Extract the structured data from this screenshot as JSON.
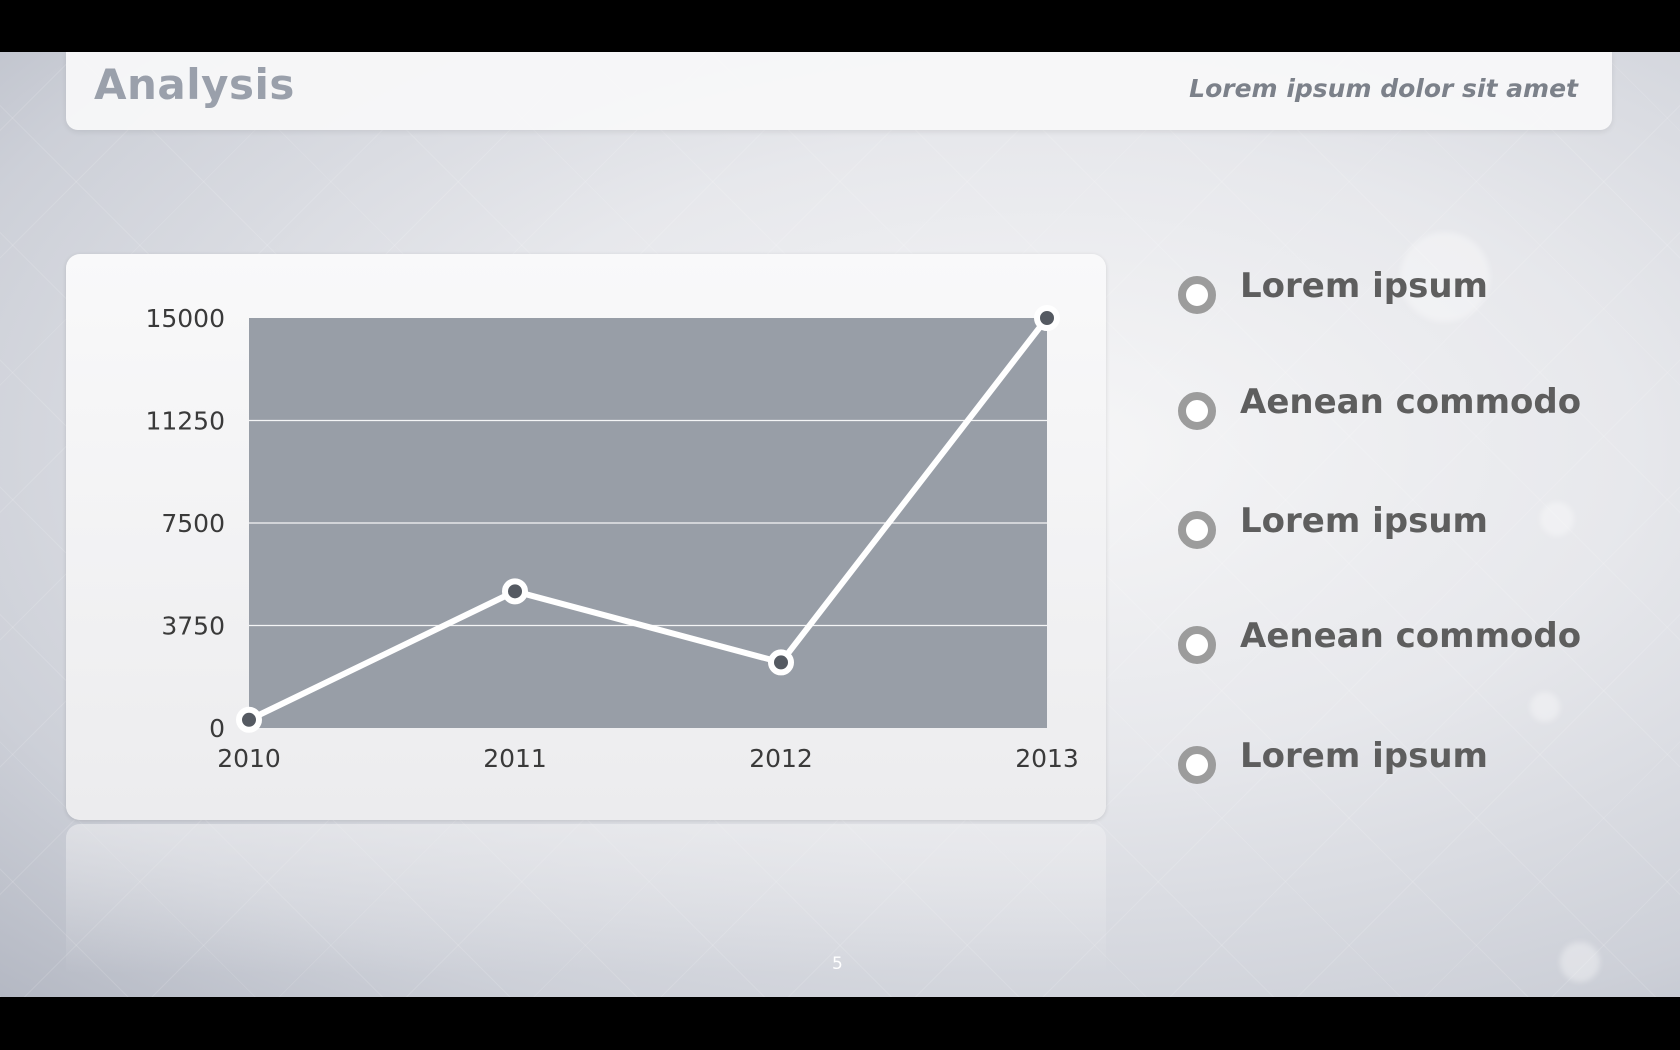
{
  "header": {
    "title": "Analysis",
    "subtitle": "Lorem ipsum dolor sit amet"
  },
  "legend": {
    "items": [
      {
        "label": "Lorem ipsum"
      },
      {
        "label": "Aenean commodo"
      },
      {
        "label": "Lorem ipsum"
      },
      {
        "label": "Aenean commodo"
      },
      {
        "label": "Lorem ipsum"
      }
    ]
  },
  "footer": {
    "page_number": "5"
  },
  "colors": {
    "plot_area": "#989ea7",
    "line": "#ffffff",
    "marker_fill": "#555a62",
    "legend_marker": "#9c9c9c",
    "title": "#9aa0ab"
  },
  "chart_data": {
    "type": "line",
    "x": [
      "2010",
      "2011",
      "2012",
      "2013"
    ],
    "series": [
      {
        "values": [
          300,
          5000,
          2400,
          15000
        ]
      }
    ],
    "yticks": [
      0,
      3750,
      7500,
      11250,
      15000
    ],
    "ylim": [
      0,
      15000
    ],
    "grid": true
  }
}
